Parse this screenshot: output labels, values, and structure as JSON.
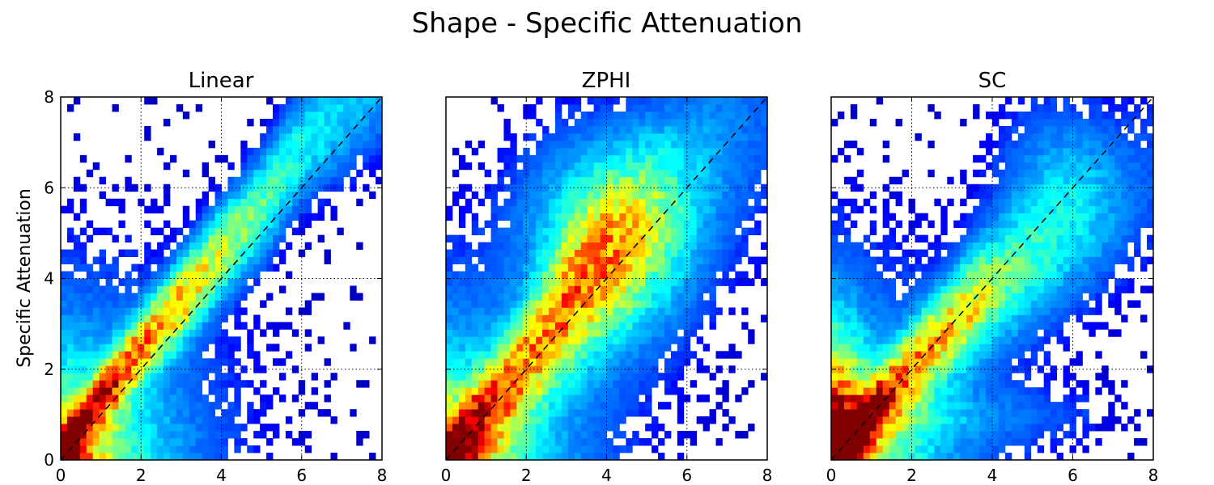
{
  "figure_title": "Shape - Specific Attenuation",
  "chart_data": [
    {
      "type": "heatmap",
      "title": "Linear",
      "xlabel": "",
      "ylabel": "Specific Attenuation",
      "xlim": [
        0,
        8
      ],
      "ylim": [
        0,
        8
      ],
      "xticks": [
        "0",
        "2",
        "4",
        "6",
        "8"
      ],
      "yticks": [
        "0",
        "2",
        "4",
        "6",
        "8"
      ],
      "bins": 50,
      "grid": true,
      "reference_line": "y = x (dashed)",
      "colormap": "jet",
      "density_ridge": [
        [
          0.2,
          0.4
        ],
        [
          1,
          1.4
        ],
        [
          2,
          2.5
        ],
        [
          3,
          3.5
        ],
        [
          4,
          4.6
        ],
        [
          5,
          5.6
        ],
        [
          6,
          6.9
        ],
        [
          7,
          7.6
        ]
      ],
      "x_range_observed": [
        0,
        8
      ],
      "y_range_observed": [
        0,
        8
      ]
    },
    {
      "type": "heatmap",
      "title": "ZPHI",
      "xlabel": "",
      "ylabel": "",
      "xlim": [
        0,
        8
      ],
      "ylim": [
        0,
        8
      ],
      "xticks": [
        "0",
        "2",
        "4",
        "6",
        "8"
      ],
      "yticks": [
        "",
        "",
        "",
        "",
        ""
      ],
      "bins": 50,
      "grid": true,
      "reference_line": "y = x (dashed)",
      "colormap": "jet",
      "density_ridge": [
        [
          0.2,
          0.3
        ],
        [
          1,
          1.2
        ],
        [
          2,
          2.2
        ],
        [
          3,
          3.3
        ],
        [
          4,
          4.3
        ],
        [
          5,
          5.2
        ]
      ],
      "x_range_observed": [
        0,
        8
      ],
      "y_range_observed": [
        0,
        8
      ]
    },
    {
      "type": "heatmap",
      "title": "SC",
      "xlabel": "",
      "ylabel": "",
      "xlim": [
        0,
        8
      ],
      "ylim": [
        0,
        8
      ],
      "xticks": [
        "0",
        "2",
        "4",
        "6",
        "8"
      ],
      "yticks": [
        "",
        "",
        "",
        "",
        ""
      ],
      "bins": 50,
      "grid": true,
      "reference_line": "y = x (dashed)",
      "colormap": "jet",
      "density_ridge": [
        [
          0.2,
          0.3
        ],
        [
          1,
          1.1
        ],
        [
          2,
          2.1
        ],
        [
          3,
          3.0
        ],
        [
          4,
          3.8
        ],
        [
          5,
          4.4
        ]
      ],
      "x_range_observed": [
        0,
        8
      ],
      "y_range_observed": [
        0,
        8
      ]
    }
  ]
}
